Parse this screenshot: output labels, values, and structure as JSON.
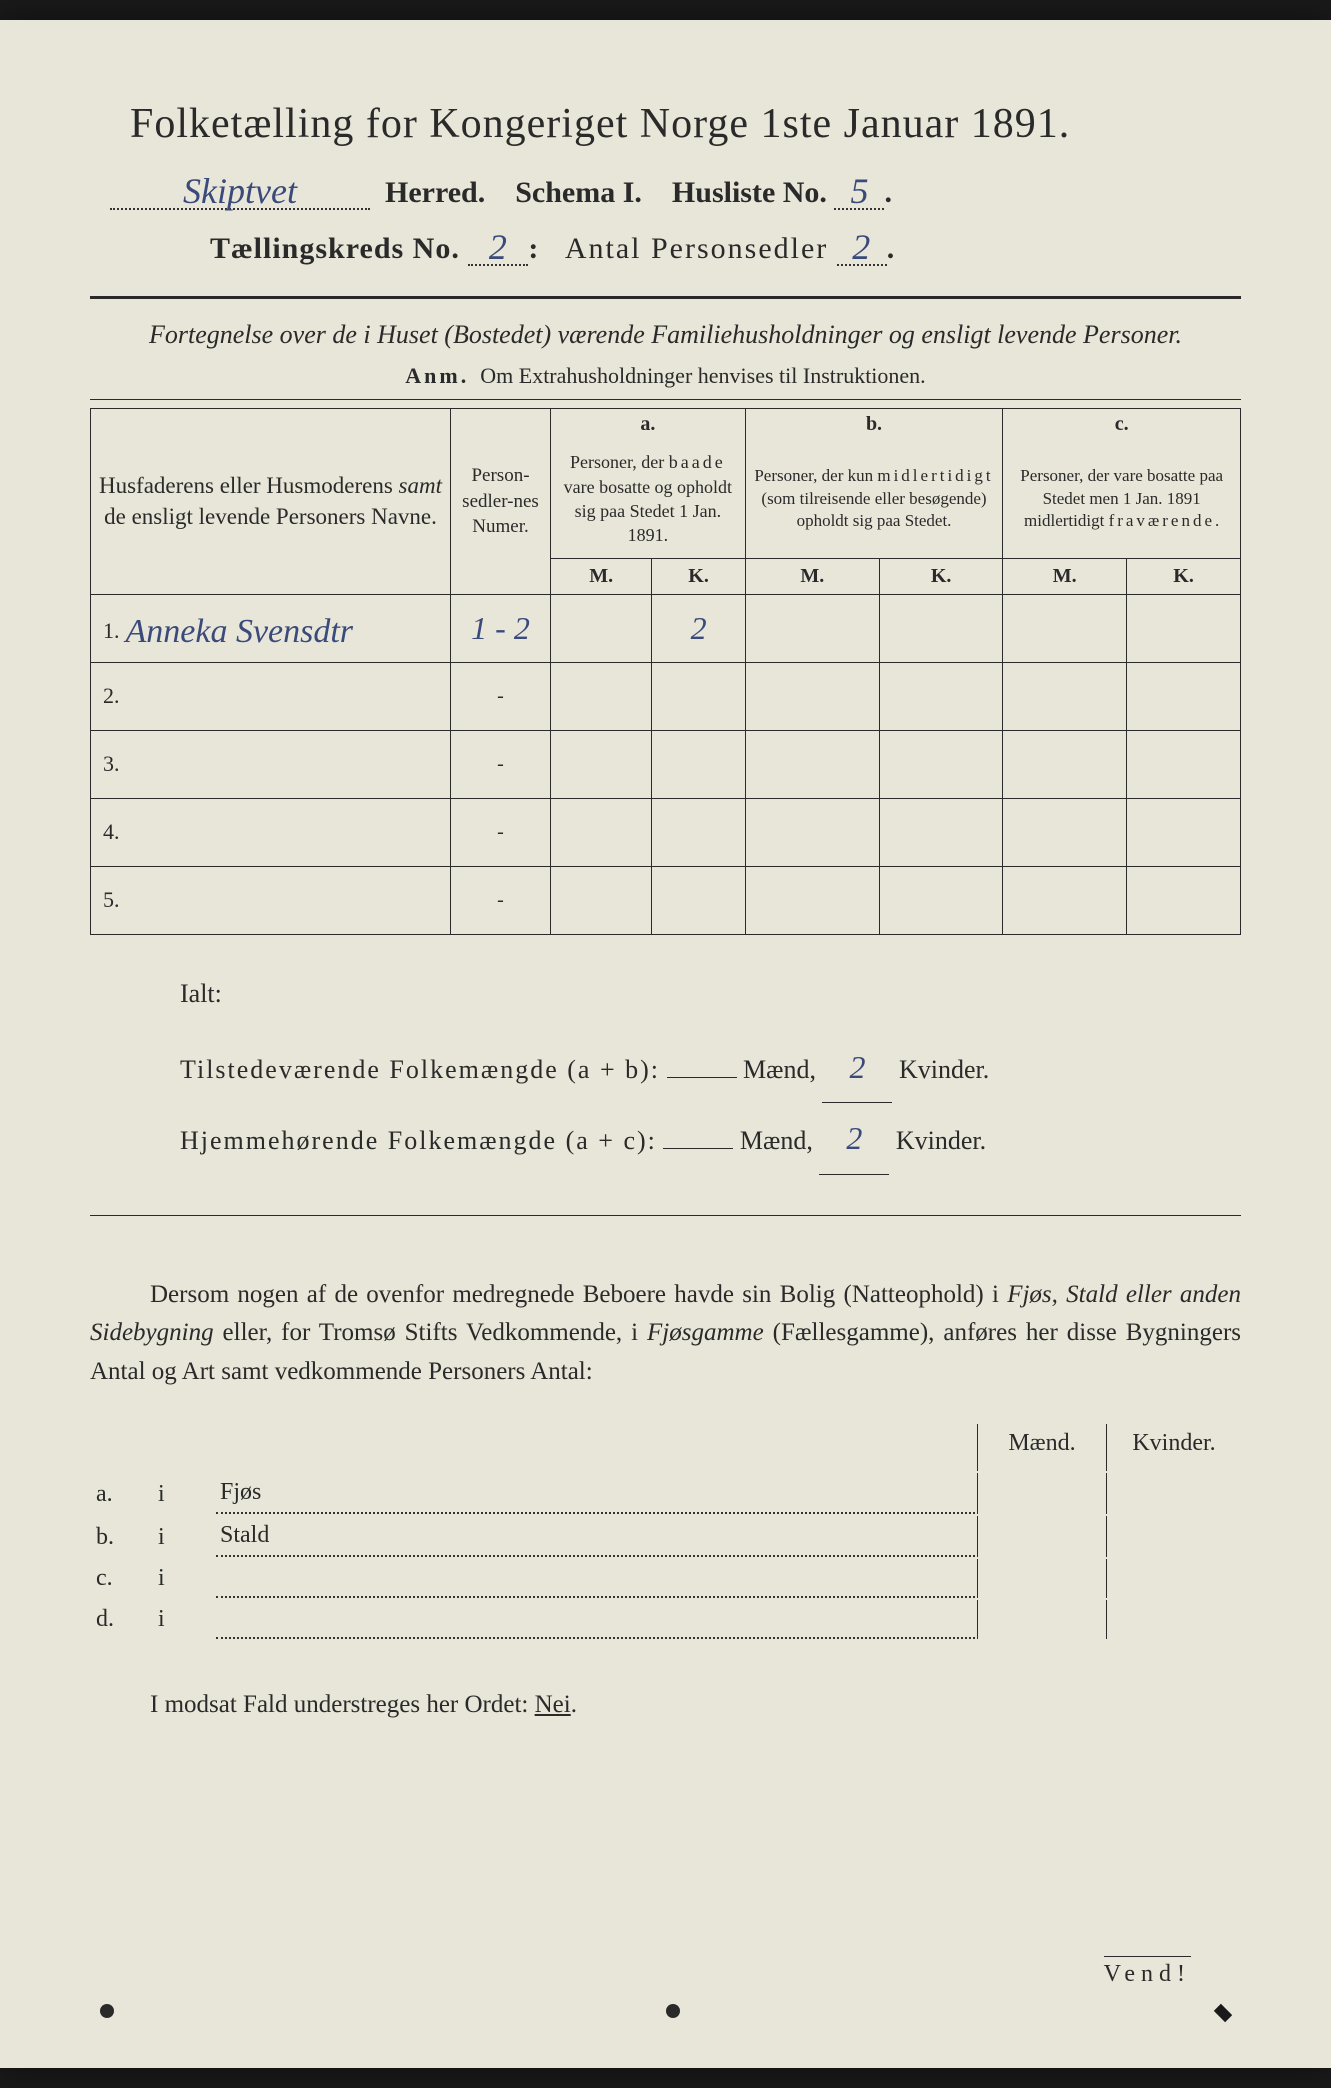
{
  "title": "Folketælling for Kongeriget Norge 1ste Januar 1891.",
  "header": {
    "herred_value": "Skiptvet",
    "herred_label": "Herred.",
    "schema_label": "Schema I.",
    "husliste_label": "Husliste No.",
    "husliste_value": "5",
    "kreds_label": "Tællingskreds No.",
    "kreds_value": "2",
    "antal_label": "Antal Personsedler",
    "antal_value": "2"
  },
  "subtitle": "Fortegnelse over de i Huset (Bostedet) værende Familiehusholdninger og ensligt levende Personer.",
  "anm_label": "Anm.",
  "anm_text": "Om Extrahusholdninger henvises til Instruktionen.",
  "columns": {
    "name": "Husfaderens eller Husmoderens samt de ensligt levende Personers Navne.",
    "person_num": "Person-sedler-nes Numer.",
    "a_label": "a.",
    "a_text": "Personer, der baade vare bosatte og opholdt sig paa Stedet 1 Jan. 1891.",
    "b_label": "b.",
    "b_text": "Personer, der kun midlertidigt (som tilreisende eller besøgende) opholdt sig paa Stedet.",
    "c_label": "c.",
    "c_text": "Personer, der vare bosatte paa Stedet men 1 Jan. 1891 midlertidigt fraværende.",
    "m": "M.",
    "k": "K."
  },
  "rows": [
    {
      "n": "1.",
      "name": "Anneka Svensdtr",
      "pnum": "1 - 2",
      "a_m": "",
      "a_k": "2",
      "b_m": "",
      "b_k": "",
      "c_m": "",
      "c_k": ""
    },
    {
      "n": "2.",
      "name": "",
      "pnum": "-",
      "a_m": "",
      "a_k": "",
      "b_m": "",
      "b_k": "",
      "c_m": "",
      "c_k": ""
    },
    {
      "n": "3.",
      "name": "",
      "pnum": "-",
      "a_m": "",
      "a_k": "",
      "b_m": "",
      "b_k": "",
      "c_m": "",
      "c_k": ""
    },
    {
      "n": "4.",
      "name": "",
      "pnum": "-",
      "a_m": "",
      "a_k": "",
      "b_m": "",
      "b_k": "",
      "c_m": "",
      "c_k": ""
    },
    {
      "n": "5.",
      "name": "",
      "pnum": "-",
      "a_m": "",
      "a_k": "",
      "b_m": "",
      "b_k": "",
      "c_m": "",
      "c_k": ""
    }
  ],
  "ialt": {
    "label": "Ialt:",
    "line1_a": "Tilstedeværende Folkemængde (a + b):",
    "line2_a": "Hjemmehørende Folkemængde (a + c):",
    "maend": "Mænd,",
    "kvinder": "Kvinder.",
    "v1_m": "",
    "v1_k": "2",
    "v2_m": "",
    "v2_k": "2"
  },
  "paragraph": "Dersom nogen af de ovenfor medregnede Beboere havde sin Bolig (Natteophold) i Fjøs, Stald eller anden Sidebygning eller, for Tromsø Stifts Vedkommende, i Fjøsgamme (Fællesgamme), anføres her disse Bygningers Antal og Art samt vedkommende Personers Antal:",
  "lower": {
    "maend": "Mænd.",
    "kvinder": "Kvinder.",
    "rows": [
      {
        "l": "a.",
        "i": "i",
        "t": "Fjøs"
      },
      {
        "l": "b.",
        "i": "i",
        "t": "Stald"
      },
      {
        "l": "c.",
        "i": "i",
        "t": ""
      },
      {
        "l": "d.",
        "i": "i",
        "t": ""
      }
    ]
  },
  "footer": {
    "text_a": "I modsat Fald understreges her Ordet:",
    "nei": "Nei",
    "vend": "Vend!"
  },
  "colors": {
    "paper": "#e8e6d8",
    "ink": "#2a2a2a",
    "handwriting": "#3a4a7a",
    "background": "#1a1a1a"
  }
}
